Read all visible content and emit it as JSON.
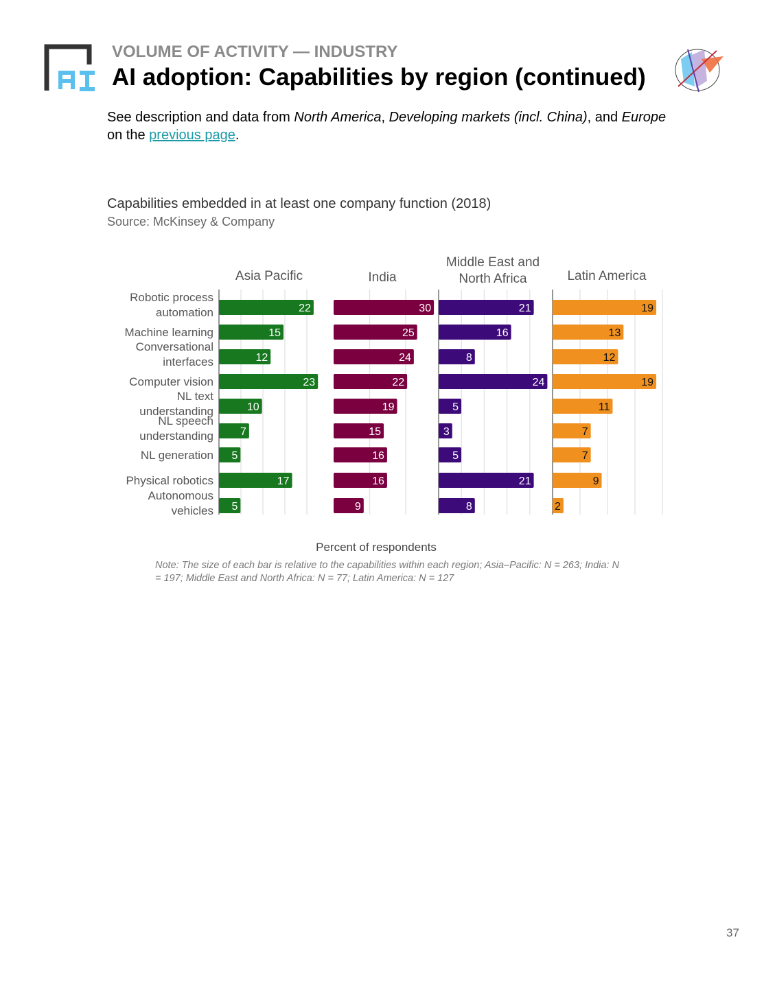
{
  "header": {
    "kicker": "VOLUME OF ACTIVITY — INDUSTRY",
    "title": "AI adoption: Capabilities by region (continued)",
    "logo_text": "AI"
  },
  "intro": {
    "t1": "See description and data from ",
    "r1": "North America",
    "t2": ", ",
    "r2": "Developing markets (incl. China)",
    "t3": ", and ",
    "r3": "Europe",
    "t4": " on the ",
    "link": "previous page",
    "t5": "."
  },
  "chart_data": {
    "type": "bar",
    "orientation": "horizontal",
    "title": "Capabilities embedded in at least one company function (2018)",
    "source": "Source: McKinsey & Company",
    "xlabel": "Percent of respondents",
    "categories": [
      "Robotic process automation",
      "Machine learning",
      "Conversational interfaces",
      "Computer vision",
      "NL text understanding",
      "NL speech understanding",
      "NL generation",
      "Physical robotics",
      "Autonomous vehicles"
    ],
    "series": [
      {
        "name": "Asia Pacific",
        "color": "#17781f",
        "label_color": "#ffffff",
        "values": [
          22,
          15,
          12,
          23,
          10,
          7,
          5,
          17,
          5
        ]
      },
      {
        "name": "India",
        "color": "#7a0040",
        "label_color": "#ffffff",
        "values": [
          30,
          25,
          24,
          22,
          19,
          15,
          16,
          16,
          9
        ]
      },
      {
        "name": "Middle East and North Africa",
        "color": "#3d0a7a",
        "label_color": "#ffffff",
        "values": [
          21,
          16,
          8,
          24,
          5,
          3,
          5,
          21,
          8
        ]
      },
      {
        "name": "Latin America",
        "color": "#f0901f",
        "label_color": "#111111",
        "values": [
          19,
          13,
          12,
          19,
          11,
          7,
          7,
          9,
          2
        ]
      }
    ],
    "note": "Note: The size of each bar is relative to the capabilities within each region; Asia–Pacific: N = 263; India: N = 197; Middle East and North Africa: N = 77; Latin America: N = 127"
  },
  "page_number": "37"
}
